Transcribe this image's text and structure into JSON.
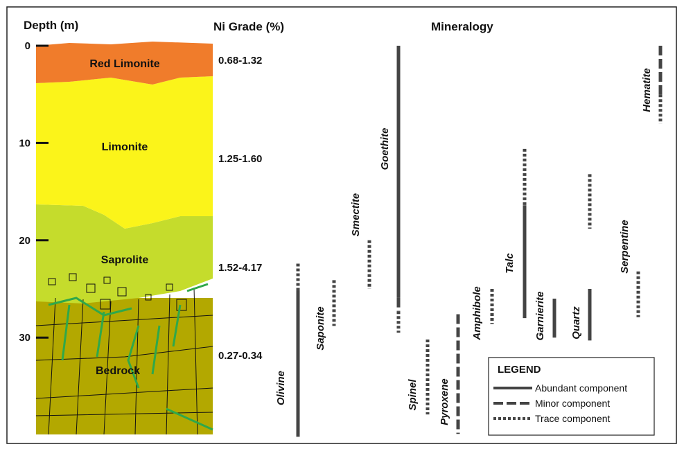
{
  "headers": {
    "depth": "Depth (m)",
    "grade": "Ni Grade (%)",
    "mineralogy": "Mineralogy"
  },
  "depth_axis": {
    "ticks": [
      0,
      10,
      20,
      30
    ]
  },
  "layers": [
    "Red Limonite",
    "Limonite",
    "Saprolite",
    "Bedrock"
  ],
  "grades": [
    "0.68-1.32",
    "1.25-1.60",
    "1.52-4.17",
    "0.27-0.34"
  ],
  "minerals": [
    {
      "name": "Olivine",
      "segments": [
        {
          "style": "trace",
          "from": 22.4,
          "to": 25.1
        },
        {
          "style": "abundant",
          "from": 25.1,
          "to": 40.2
        }
      ]
    },
    {
      "name": "Saponite",
      "segments": [
        {
          "style": "trace",
          "from": 24.1,
          "to": 28.8
        }
      ]
    },
    {
      "name": "Smectite",
      "segments": [
        {
          "style": "trace",
          "from": 20,
          "to": 25
        }
      ]
    },
    {
      "name": "Goethite",
      "segments": [
        {
          "style": "abundant",
          "from": 0,
          "to": 25.9
        },
        {
          "style": "minor",
          "from": 25.9,
          "to": 27.3
        },
        {
          "style": "trace",
          "from": 27.3,
          "to": 29.5
        }
      ]
    },
    {
      "name": "Spinel",
      "segments": [
        {
          "style": "trace",
          "from": 30.2,
          "to": 37.9
        }
      ]
    },
    {
      "name": "Pyroxene",
      "segments": [
        {
          "style": "minor",
          "from": 27.6,
          "to": 39.9
        }
      ]
    },
    {
      "name": "Amphibole",
      "segments": [
        {
          "style": "trace",
          "from": 25,
          "to": 28.6
        }
      ]
    },
    {
      "name": "Talc",
      "segments": [
        {
          "style": "trace",
          "from": 10.6,
          "to": 16.4
        },
        {
          "style": "abundant",
          "from": 16.4,
          "to": 28
        }
      ]
    },
    {
      "name": "Garnierite",
      "segments": [
        {
          "style": "abundant",
          "from": 26,
          "to": 30
        }
      ]
    },
    {
      "name": "Quartz",
      "segments": [
        {
          "style": "trace",
          "from": 13.2,
          "to": 18.8
        },
        {
          "style": "abundant",
          "from": 25,
          "to": 30.3
        }
      ]
    },
    {
      "name": "Serpentine",
      "segments": [
        {
          "style": "trace",
          "from": 23.2,
          "to": 27.9
        }
      ]
    },
    {
      "name": "Hematite",
      "segments": [
        {
          "style": "minor",
          "from": 0,
          "to": 5
        },
        {
          "style": "trace",
          "from": 5,
          "to": 8
        }
      ]
    }
  ],
  "legend": {
    "title": "LEGEND",
    "items": [
      {
        "style": "abundant",
        "label": "Abundant component"
      },
      {
        "style": "minor",
        "label": "Minor  component"
      },
      {
        "style": "trace",
        "label": "Trace component"
      }
    ]
  }
}
